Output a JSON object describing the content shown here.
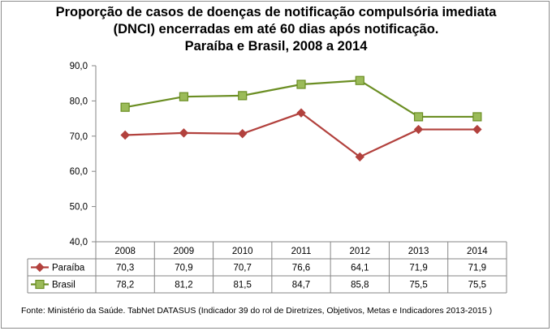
{
  "title_lines": [
    "Proporção de casos de doenças de notificação compulsória imediata",
    "(DNCI) encerradas em até 60 dias após notificação.",
    "Paraíba e Brasil, 2008 a 2014"
  ],
  "source": "Fonte: Ministério da Saúde. TabNet DATASUS (Indicador 39 do rol de Diretrizes, Objetivos, Metas e Indicadores 2013-2015 )",
  "colors": {
    "paraiba": "#b2413d",
    "brasil": "#6b8e23",
    "brasil_marker": "#9bbb59"
  },
  "chart_data": {
    "type": "line",
    "title": "Proporção de casos de doenças de notificação compulsória imediata (DNCI) encerradas em até 60 dias após notificação. Paraíba e Brasil, 2008 a 2014",
    "categories": [
      "2008",
      "2009",
      "2010",
      "2011",
      "2012",
      "2013",
      "2014"
    ],
    "ylim": [
      40,
      90
    ],
    "yticks": [
      "40,0",
      "50,0",
      "60,0",
      "70,0",
      "80,0",
      "90,0"
    ],
    "grid": false,
    "legend": "data-table",
    "series": [
      {
        "name": "Paraíba",
        "marker": "diamond",
        "values": [
          70.3,
          70.9,
          70.7,
          76.6,
          64.1,
          71.9,
          71.9
        ],
        "labels": [
          "70,3",
          "70,9",
          "70,7",
          "76,6",
          "64,1",
          "71,9",
          "71,9"
        ]
      },
      {
        "name": "Brasil",
        "marker": "square",
        "values": [
          78.2,
          81.2,
          81.5,
          84.7,
          85.8,
          75.5,
          75.5
        ],
        "labels": [
          "78,2",
          "81,2",
          "81,5",
          "84,7",
          "85,8",
          "75,5",
          "75,5"
        ]
      }
    ]
  }
}
